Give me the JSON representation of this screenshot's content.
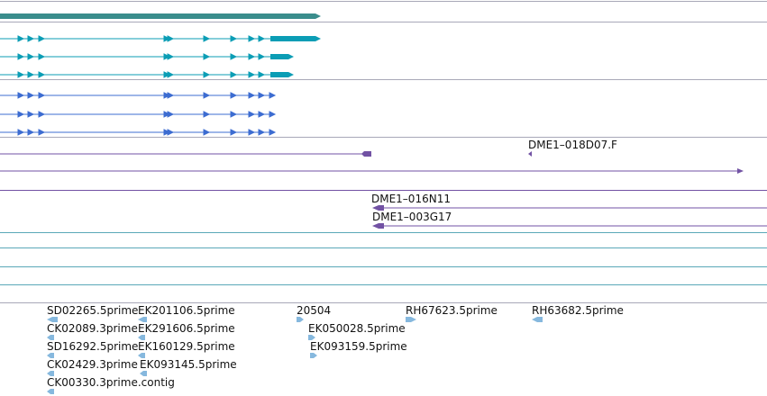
{
  "colors": {
    "separator": "#a8a8b8",
    "gene_summary": "#3a8d8c",
    "transcript_cyan": "#0b9db5",
    "transcript_blue": "#3c6cd1",
    "clone": "#7252a4",
    "empty_track": "#5aa8b8",
    "est": "#86b8de",
    "label": "#111111"
  },
  "clone_labels": {
    "dme1_018d07_f": "DME1–018D07.F",
    "dme1_016n11": "DME1–016N11",
    "dme1_003g17": "DME1–003G17"
  },
  "est_labels": {
    "sd02265": "SD02265.5prime",
    "ek201106": "EK201106.5prime",
    "n20504": "20504",
    "rh67623": "RH67623.5prime",
    "rh63682": "RH63682.5prime",
    "ck02089": "CK02089.3prime",
    "ek291606": "EK291606.5prime",
    "ek050028": "EK050028.5prime",
    "sd16292": "SD16292.5prime",
    "ek160129": "EK160129.5prime",
    "ek093159": "EK093159.5prime",
    "ck02429": "CK02429.3prime",
    "ek093145": "EK093145.5prime",
    "ck00330": "CK00330.3prime.contig"
  }
}
